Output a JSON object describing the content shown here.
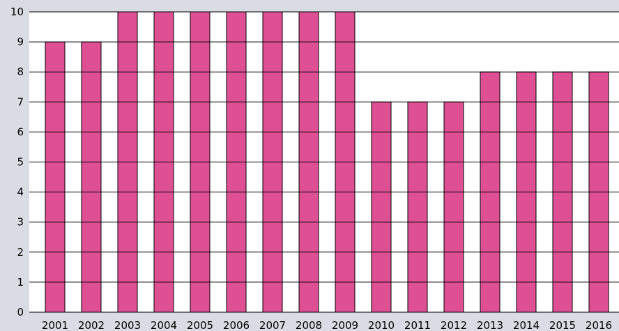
{
  "chart_data": {
    "type": "bar",
    "categories": [
      "2001",
      "2002",
      "2003",
      "2004",
      "2005",
      "2006",
      "2007",
      "2008",
      "2009",
      "2010",
      "2011",
      "2012",
      "2013",
      "2014",
      "2015",
      "2016"
    ],
    "series": [
      {
        "values": [
          9,
          9,
          10,
          10,
          10,
          10,
          10,
          10,
          10,
          7,
          7,
          7,
          8,
          8,
          8,
          8
        ]
      }
    ],
    "title": "",
    "xlabel": "",
    "ylabel": "",
    "ylim": [
      0,
      10
    ],
    "yticks": [
      "0",
      "1",
      "2",
      "3",
      "4",
      "5",
      "6",
      "7",
      "8",
      "9",
      "10"
    ],
    "grid": true,
    "legend": "none",
    "colors": {
      "background": "#d9dde3",
      "plot_area": "#ffffff",
      "bar": "#de4f94",
      "grid": "#000000",
      "text": "#000000"
    }
  }
}
